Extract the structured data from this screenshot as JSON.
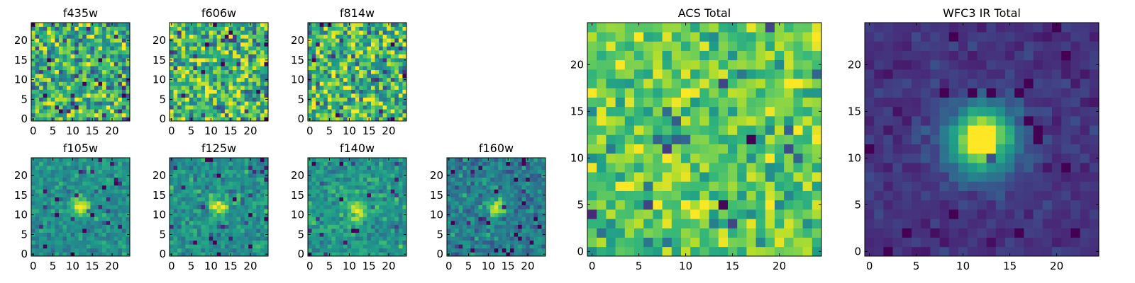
{
  "figure": {
    "colormap": "viridis",
    "colormap_stops": [
      "#440154",
      "#482878",
      "#3e4989",
      "#31688e",
      "#26828e",
      "#1f9e89",
      "#35b779",
      "#6ece58",
      "#b5de2b",
      "#fde725"
    ]
  },
  "chart_data": [
    {
      "type": "heatmap",
      "title": "f435w",
      "x_ticks": [
        "0",
        "5",
        "10",
        "15",
        "20"
      ],
      "y_ticks": [
        "0",
        "5",
        "10",
        "15",
        "20"
      ],
      "xlim": [
        -0.5,
        24.5
      ],
      "ylim": [
        -0.5,
        24.5
      ],
      "grid_size": [
        25,
        25
      ],
      "pattern": "noise",
      "noise_mean": 0.65,
      "noise_spread": 0.26,
      "source": null
    },
    {
      "type": "heatmap",
      "title": "f606w",
      "x_ticks": [
        "0",
        "5",
        "10",
        "15",
        "20"
      ],
      "y_ticks": [
        "0",
        "5",
        "10",
        "15",
        "20"
      ],
      "xlim": [
        -0.5,
        24.5
      ],
      "ylim": [
        -0.5,
        24.5
      ],
      "grid_size": [
        25,
        25
      ],
      "pattern": "noise",
      "noise_mean": 0.68,
      "noise_spread": 0.25,
      "source": null
    },
    {
      "type": "heatmap",
      "title": "f814w",
      "x_ticks": [
        "0",
        "5",
        "10",
        "15",
        "20"
      ],
      "y_ticks": [
        "0",
        "5",
        "10",
        "15",
        "20"
      ],
      "xlim": [
        -0.5,
        24.5
      ],
      "ylim": [
        -0.5,
        24.5
      ],
      "grid_size": [
        25,
        25
      ],
      "pattern": "noise",
      "noise_mean": 0.68,
      "noise_spread": 0.25,
      "source": null
    },
    {
      "type": "heatmap",
      "title": "f105w",
      "x_ticks": [
        "0",
        "5",
        "10",
        "15",
        "20"
      ],
      "y_ticks": [
        "0",
        "5",
        "10",
        "15",
        "20"
      ],
      "xlim": [
        -0.5,
        24.5
      ],
      "ylim": [
        -0.5,
        24.5
      ],
      "grid_size": [
        25,
        25
      ],
      "pattern": "source",
      "noise_mean": 0.5,
      "noise_spread": 0.1,
      "source": {
        "x": 12,
        "y": 12,
        "sigma": 1.6,
        "peak": 0.5
      }
    },
    {
      "type": "heatmap",
      "title": "f125w",
      "x_ticks": [
        "0",
        "5",
        "10",
        "15",
        "20"
      ],
      "y_ticks": [
        "0",
        "5",
        "10",
        "15",
        "20"
      ],
      "xlim": [
        -0.5,
        24.5
      ],
      "ylim": [
        -0.5,
        24.5
      ],
      "grid_size": [
        25,
        25
      ],
      "pattern": "source",
      "noise_mean": 0.5,
      "noise_spread": 0.11,
      "source": {
        "x": 12,
        "y": 12,
        "sigma": 1.6,
        "peak": 0.47
      }
    },
    {
      "type": "heatmap",
      "title": "f140w",
      "x_ticks": [
        "0",
        "5",
        "10",
        "15",
        "20"
      ],
      "y_ticks": [
        "0",
        "5",
        "10",
        "15",
        "20"
      ],
      "xlim": [
        -0.5,
        24.5
      ],
      "ylim": [
        -0.5,
        24.5
      ],
      "grid_size": [
        25,
        25
      ],
      "pattern": "source",
      "noise_mean": 0.53,
      "noise_spread": 0.11,
      "source": {
        "x": 12,
        "y": 11,
        "sigma": 1.8,
        "peak": 0.45
      }
    },
    {
      "type": "heatmap",
      "title": "f160w",
      "x_ticks": [
        "0",
        "5",
        "10",
        "15",
        "20"
      ],
      "y_ticks": [
        "0",
        "5",
        "10",
        "15",
        "20"
      ],
      "xlim": [
        -0.5,
        24.5
      ],
      "ylim": [
        -0.5,
        24.5
      ],
      "grid_size": [
        25,
        25
      ],
      "pattern": "source",
      "noise_mean": 0.42,
      "noise_spread": 0.12,
      "source": {
        "x": 12,
        "y": 12,
        "sigma": 1.6,
        "peak": 0.55
      }
    },
    {
      "type": "heatmap",
      "title": "ACS Total",
      "x_ticks": [
        "0",
        "5",
        "10",
        "15",
        "20"
      ],
      "y_ticks": [
        "0",
        "5",
        "10",
        "15",
        "20"
      ],
      "xlim": [
        -0.5,
        24.5
      ],
      "ylim": [
        -0.5,
        24.5
      ],
      "grid_size": [
        25,
        25
      ],
      "pattern": "noise",
      "noise_mean": 0.74,
      "noise_spread": 0.17,
      "source": null
    },
    {
      "type": "heatmap",
      "title": "WFC3 IR Total",
      "x_ticks": [
        "0",
        "5",
        "10",
        "15",
        "20"
      ],
      "y_ticks": [
        "0",
        "5",
        "10",
        "15",
        "20"
      ],
      "xlim": [
        -0.5,
        24.5
      ],
      "ylim": [
        -0.5,
        24.5
      ],
      "grid_size": [
        25,
        25
      ],
      "pattern": "source",
      "noise_mean": 0.15,
      "noise_spread": 0.05,
      "source": {
        "x": 12,
        "y": 12,
        "sigma": 2.6,
        "peak": 0.85
      }
    }
  ]
}
